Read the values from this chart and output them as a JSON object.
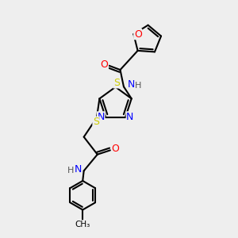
{
  "background_color": "#eeeeee",
  "bond_color": "#000000",
  "atom_colors": {
    "N": "#0000ff",
    "O": "#ff0000",
    "S": "#cccc00",
    "C": "#000000",
    "H": "#555555"
  },
  "lw": 1.5,
  "fs": 8,
  "fig_width": 3.0,
  "fig_height": 3.0,
  "dpi": 100
}
